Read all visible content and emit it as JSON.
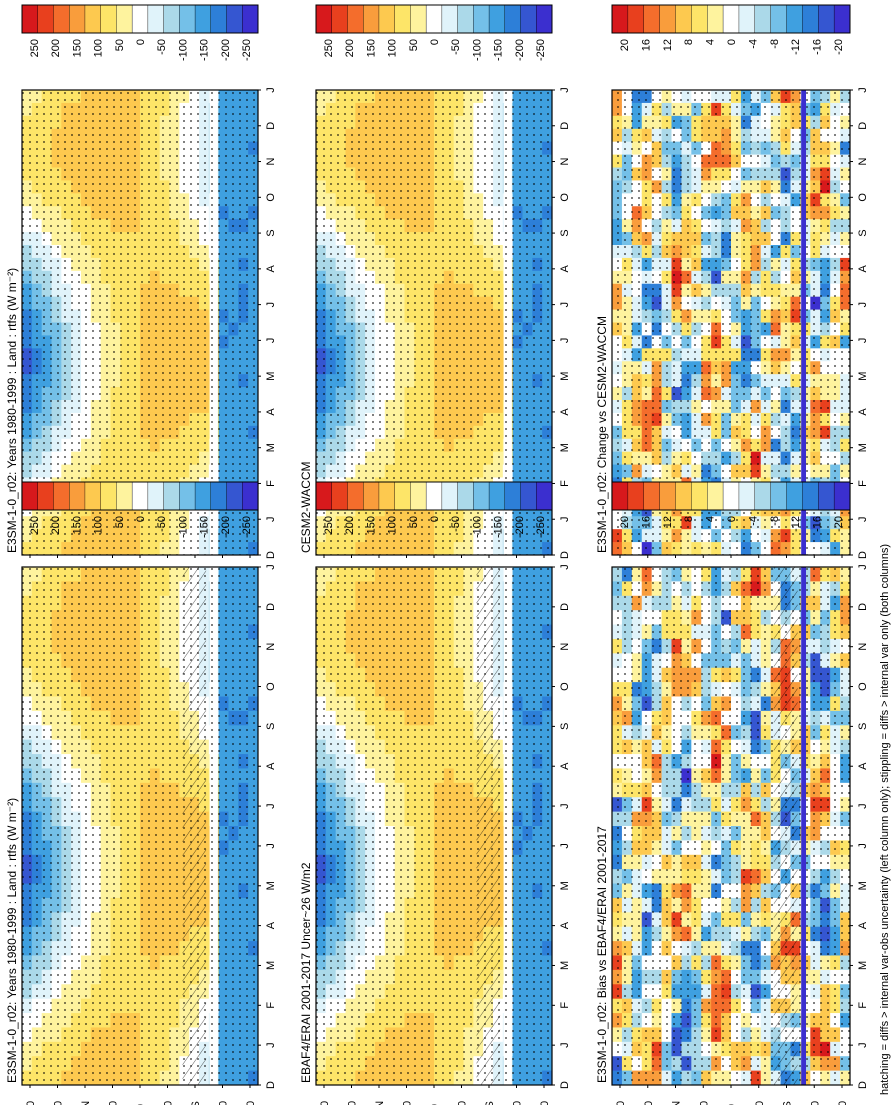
{
  "figure": {
    "footnote": "hatching = diffs > internal var-obs uncertainty (left column only); stippling = diffs > internal var only (both columns)"
  },
  "chart_data": [
    {
      "type": "heatmap",
      "id": "p1",
      "title": "E3SM-1-0_r02: Years 1980-1999 : Land : rtfs (W m⁻²)",
      "x_ticks": [
        "D",
        "J",
        "F",
        "M",
        "A",
        "M",
        "J",
        "J",
        "A",
        "S",
        "O",
        "N",
        "D",
        "J"
      ],
      "y_ticks": [
        "80",
        "60",
        "°N",
        "20",
        "0",
        "20",
        "°S",
        "60",
        "80"
      ],
      "colorbar_ticks": [
        "250",
        "200",
        "150",
        "100",
        "50",
        "0",
        "-50",
        "-100",
        "-150",
        "-200",
        "-250"
      ],
      "hatching": true,
      "stippling": true
    },
    {
      "type": "heatmap",
      "id": "p2",
      "title": "EBAF4/ERAI 2001-2017 Uncer~26 W/m2",
      "x_ticks": [
        "D",
        "J",
        "F",
        "M",
        "A",
        "M",
        "J",
        "J",
        "A",
        "S",
        "O",
        "N",
        "D",
        "J"
      ],
      "y_ticks": [
        "80",
        "60",
        "°N",
        "20",
        "0",
        "20",
        "°S",
        "60",
        "80"
      ],
      "colorbar_ticks": [
        "250",
        "200",
        "150",
        "100",
        "50",
        "0",
        "-50",
        "-100",
        "-150",
        "-200",
        "-250"
      ],
      "hatching": true,
      "stippling": true
    },
    {
      "type": "heatmap",
      "id": "p3",
      "title": "E3SM-1-0_r02: Bias vs EBAF4/ERAI 2001-2017",
      "x_ticks": [
        "D",
        "J",
        "F",
        "M",
        "A",
        "M",
        "J",
        "J",
        "A",
        "S",
        "O",
        "N",
        "D",
        "J"
      ],
      "y_ticks": [
        "80",
        "60",
        "°N",
        "20",
        "0",
        "20",
        "°S",
        "60",
        "80"
      ],
      "colorbar_ticks": [
        "20",
        "16",
        "12",
        "8",
        "4",
        "0",
        "-4",
        "-8",
        "-12",
        "-16",
        "-20"
      ],
      "hatching": true,
      "stippling": true
    },
    {
      "type": "heatmap",
      "id": "p4",
      "title": "E3SM-1-0_r02: Years 1980-1999 : Land : rtfs (W m⁻²)",
      "x_ticks": [
        "D",
        "J",
        "F",
        "M",
        "A",
        "M",
        "J",
        "J",
        "A",
        "S",
        "O",
        "N",
        "D",
        "J"
      ],
      "y_ticks": [
        "80",
        "60",
        "°N",
        "20",
        "0",
        "20",
        "°S",
        "60",
        "80"
      ],
      "colorbar_ticks": [
        "250",
        "200",
        "150",
        "100",
        "50",
        "0",
        "-50",
        "-100",
        "-150",
        "-200",
        "-250"
      ],
      "hatching": false,
      "stippling": true
    },
    {
      "type": "heatmap",
      "id": "p5",
      "title": "CESM2-WACCM",
      "x_ticks": [
        "D",
        "J",
        "F",
        "M",
        "A",
        "M",
        "J",
        "J",
        "A",
        "S",
        "O",
        "N",
        "D",
        "J"
      ],
      "y_ticks": [
        "80",
        "60",
        "°N",
        "20",
        "0",
        "20",
        "°S",
        "60",
        "80"
      ],
      "colorbar_ticks": [
        "250",
        "200",
        "150",
        "100",
        "50",
        "0",
        "-50",
        "-100",
        "-150",
        "-200",
        "-250"
      ],
      "hatching": false,
      "stippling": true
    },
    {
      "type": "heatmap",
      "id": "p6",
      "title": "E3SM-1-0_r02: Change vs CESM2-WACCM",
      "x_ticks": [
        "D",
        "J",
        "F",
        "M",
        "A",
        "M",
        "J",
        "J",
        "A",
        "S",
        "O",
        "N",
        "D",
        "J"
      ],
      "y_ticks": [
        "80",
        "60",
        "°N",
        "20",
        "0",
        "20",
        "°S",
        "60",
        "80"
      ],
      "colorbar_ticks": [
        "20",
        "16",
        "12",
        "8",
        "4",
        "0",
        "-4",
        "-8",
        "-12",
        "-16",
        "-20"
      ],
      "hatching": false,
      "stippling": true
    }
  ],
  "palette": [
    "#d7191c",
    "#e8401e",
    "#f46d2c",
    "#f99d3c",
    "#fdc94f",
    "#fde568",
    "#fef39e",
    "#ffffff",
    "#e0f3fa",
    "#abd9e9",
    "#74c0e8",
    "#3fa0e0",
    "#2d7fd8",
    "#3556d1",
    "#3b2fcf"
  ]
}
